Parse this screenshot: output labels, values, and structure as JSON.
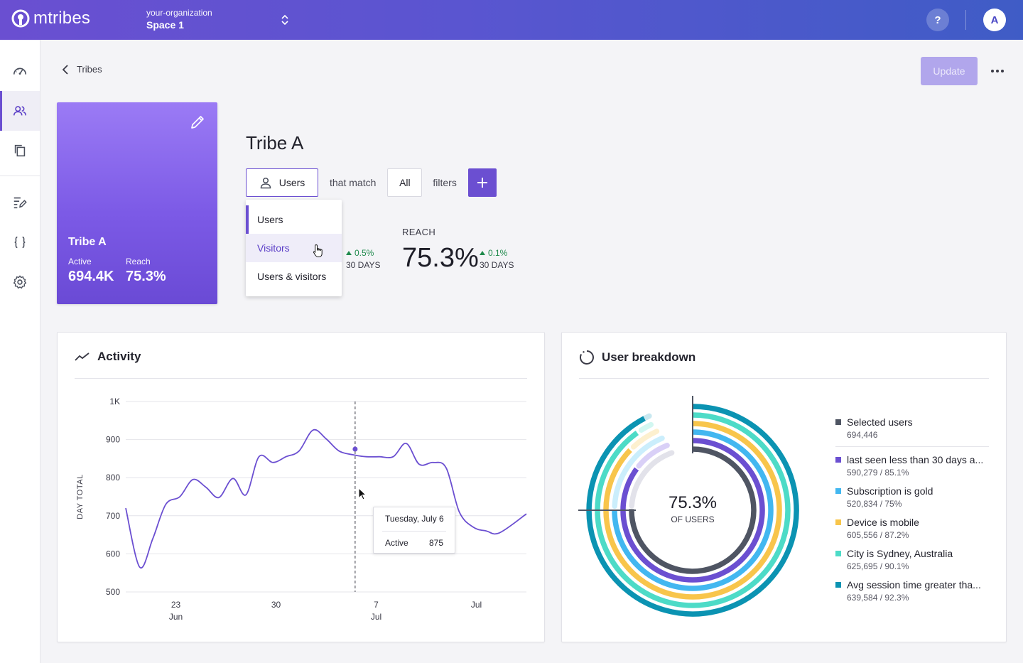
{
  "app": {
    "logo_text": "mtribes",
    "organization": "your-organization",
    "space": "Space 1",
    "help_label": "?",
    "avatar_initial": "A"
  },
  "sidebar": {
    "items": [
      {
        "name": "dashboard",
        "icon": "gauge-icon"
      },
      {
        "name": "tribes",
        "icon": "users-icon",
        "active": true
      },
      {
        "name": "collections",
        "icon": "copy-icon"
      },
      {
        "name": "experiences",
        "icon": "edit-list-icon"
      },
      {
        "name": "code",
        "icon": "braces-icon"
      },
      {
        "name": "settings",
        "icon": "gear-icon"
      }
    ]
  },
  "header": {
    "back_label": "Tribes",
    "update_label": "Update"
  },
  "tribe_card": {
    "title": "Tribe A",
    "active_label": "Active",
    "active_value": "694.4K",
    "reach_label": "Reach",
    "reach_value": "75.3%"
  },
  "tribe": {
    "title": "Tribe A",
    "audience_label": "Users",
    "match_text": "that match",
    "match_mode": "All",
    "filters_text": "filters",
    "audience_options": [
      "Users",
      "Visitors",
      "Users & visitors"
    ],
    "active_delta": "0.5%",
    "active_delta_period": "30 DAYS",
    "reach_label": "REACH",
    "reach_value": "75.3%",
    "reach_delta": "0.1%",
    "reach_delta_period": "30 DAYS"
  },
  "activity": {
    "title": "Activity",
    "tooltip": {
      "date": "Tuesday, July 6",
      "series": "Active",
      "value": "875"
    },
    "accent": "#6b4fd1"
  },
  "chart_data": {
    "type": "line",
    "ylabel": "DAY TOTAL",
    "ylim": [
      500,
      1000
    ],
    "yticks": [
      500,
      600,
      700,
      800,
      900,
      1000
    ],
    "ytick_labels": [
      "500",
      "600",
      "700",
      "800",
      "900",
      "1K"
    ],
    "xlim": [
      0,
      40
    ],
    "xtick_positions": [
      5,
      15,
      25,
      35
    ],
    "xtick_labels": [
      [
        "23",
        "Jun"
      ],
      [
        "30",
        ""
      ],
      [
        "7",
        "Jul"
      ],
      [
        "Jul",
        ""
      ]
    ],
    "series": [
      {
        "values": [
          720,
          565,
          640,
          730,
          750,
          795,
          775,
          748,
          798,
          755,
          855,
          840,
          855,
          870,
          925,
          902,
          870,
          860,
          855,
          855,
          855,
          890,
          835,
          840,
          825,
          710,
          670,
          660,
          655,
          705
        ]
      }
    ],
    "x": [
      0,
      1.4,
      2.7,
      4,
      5.4,
      6.7,
      8,
      9.3,
      10.7,
      12,
      13.3,
      14.7,
      16,
      17.3,
      18.7,
      20,
      21.3,
      22.7,
      24,
      25.3,
      26.7,
      28,
      29.3,
      30.7,
      32,
      33.3,
      34.7,
      36,
      37.3,
      40
    ],
    "highlight_x": 22.9,
    "highlight_value": 875
  },
  "breakdown": {
    "title": "User breakdown",
    "center_value": "75.3%",
    "center_label": "OF USERS",
    "items": [
      {
        "name": "Selected users",
        "sub": "694,446",
        "color": "#4f5563",
        "pct": 75.3
      },
      {
        "name": "last seen less than 30 days a...",
        "sub": "590,279 / 85.1%",
        "color": "#6b4fd1",
        "pct": 85.1
      },
      {
        "name": "Subscription is gold",
        "sub": "520,834 / 75%",
        "color": "#42b7f0",
        "pct": 75
      },
      {
        "name": "Device is mobile",
        "sub": "605,556 / 87.2%",
        "color": "#f8c54b",
        "pct": 87.2
      },
      {
        "name": "City is Sydney, Australia",
        "sub": "625,695 / 90.1%",
        "color": "#4ddbc7",
        "pct": 90.1
      },
      {
        "name": "Avg session time greater tha...",
        "sub": "639,584 / 92.3%",
        "color": "#0b93b2",
        "pct": 92.3
      }
    ]
  }
}
